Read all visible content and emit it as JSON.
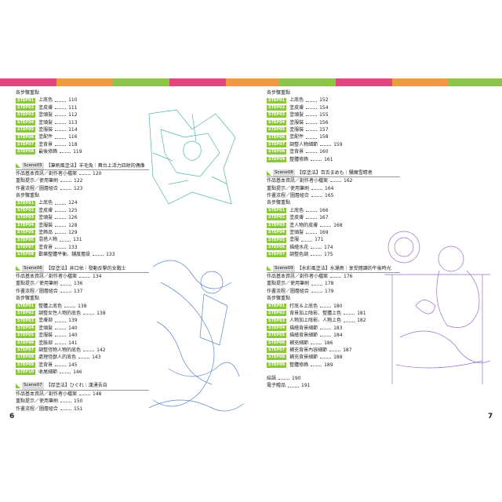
{
  "pages": [
    {
      "number": 6,
      "lines": [
        {
          "text": "各步驟重點"
        },
        {
          "step": "STEP01",
          "text": "上底色",
          "page": 110
        },
        {
          "step": "STEP02",
          "text": "塗皮膚",
          "page": 111
        },
        {
          "step": "STEP03",
          "text": "塗頭髮",
          "page": 112
        },
        {
          "step": "STEP04",
          "text": "塗頭髮",
          "page": 113
        },
        {
          "step": "STEP05",
          "text": "塗服裝",
          "page": 114
        },
        {
          "step": "STEP06",
          "text": "塗配件",
          "page": 116
        },
        {
          "step": "STEP07",
          "text": "塗背景",
          "page": 118
        },
        {
          "step": "STEP08",
          "text": "最後修飾",
          "page": 119
        },
        {
          "scene": "Scene05",
          "text": "【筆刷風塗法】羊毛兔｜舞台上活力四射的偶像"
        },
        {
          "text": "作品基本資訊／創作者小檔案",
          "page": 120
        },
        {
          "text": "重點提示／使用筆刷",
          "page": 122
        },
        {
          "text": "作畫流程／圖層組合",
          "page": 123
        },
        {
          "text": "各步驟重點"
        },
        {
          "step": "STEP01",
          "text": "上底色",
          "page": 124
        },
        {
          "step": "STEP02",
          "text": "塗皮膚",
          "page": 125
        },
        {
          "step": "STEP03",
          "text": "塗頭髮",
          "page": 126
        },
        {
          "step": "STEP04",
          "text": "塗服裝",
          "page": 128
        },
        {
          "step": "STEP05",
          "text": "塗飾品",
          "page": 129
        },
        {
          "step": "STEP06",
          "text": "混搭人物",
          "page": 131
        },
        {
          "step": "STEP07",
          "text": "塗背景",
          "page": 133
        },
        {
          "step": "STEP08",
          "text": "歡樂整體平衡、鋪度層設",
          "page": 133
        },
        {
          "scene": "Scene06",
          "text": "【厚塗法】井口佑｜發動反擊的女戰士"
        },
        {
          "text": "作品基本資訊／創作者小檔案",
          "page": 134
        },
        {
          "text": "重點提示／使用筆刷",
          "page": 136
        },
        {
          "text": "作畫流程／圖層組合",
          "page": 137
        },
        {
          "text": "各步驟重點"
        },
        {
          "step": "STEP01",
          "text": "整體上底色",
          "page": 138
        },
        {
          "step": "STEP02",
          "text": "調整女性人物的底色",
          "page": 138
        },
        {
          "step": "STEP03",
          "text": "塗膚部",
          "page": 139
        },
        {
          "step": "STEP04",
          "text": "塗頭髮",
          "page": 140
        },
        {
          "step": "STEP05",
          "text": "塗服裝",
          "page": 140
        },
        {
          "step": "STEP06",
          "text": "塗臉部",
          "page": 141
        },
        {
          "step": "STEP07",
          "text": "調整怪物人物的底色",
          "page": 142
        },
        {
          "step": "STEP08",
          "text": "處理怪獸人的底色",
          "page": 143
        },
        {
          "step": "STEP09",
          "text": "塗背景",
          "page": 145
        },
        {
          "step": "STEP10",
          "text": "收尾細節",
          "page": 146
        },
        {
          "scene": "Scene07",
          "text": "【厚塗法】ひぐれ｜漢湧吾自"
        },
        {
          "text": "作品基本資訊／創作者小檔案",
          "page": 148
        },
        {
          "text": "重點提示／使用筆刷",
          "page": 150
        },
        {
          "text": "作畫流程／圖層組合",
          "page": 151
        }
      ]
    },
    {
      "number": 7,
      "lines": [
        {
          "text": "各步驟重點"
        },
        {
          "step": "STEP01",
          "text": "上底色",
          "page": 152
        },
        {
          "step": "STEP02",
          "text": "塗皮膚",
          "page": 154
        },
        {
          "step": "STEP03",
          "text": "塗頭髮",
          "page": 155
        },
        {
          "step": "STEP04",
          "text": "塗服裝",
          "page": 156
        },
        {
          "step": "STEP05",
          "text": "塗服裝",
          "page": 157
        },
        {
          "step": "STEP06",
          "text": "塗配件",
          "page": 158
        },
        {
          "step": "STEP07",
          "text": "調整人物細節",
          "page": 159
        },
        {
          "step": "STEP08",
          "text": "塗背景",
          "page": 160
        },
        {
          "step": "STEP09",
          "text": "整體修飾",
          "page": 161
        },
        {
          "scene": "Scene08",
          "text": "【厚塗法】百舌まめも｜騒魔雪精者"
        },
        {
          "text": "作品基本資訊／創作者小檔案",
          "page": 162
        },
        {
          "text": "重點提示／使用筆刷",
          "page": 164
        },
        {
          "text": "作畫流程／圖層組合",
          "page": 165
        },
        {
          "text": "各步驟重點"
        },
        {
          "step": "STEP01",
          "text": "上底色",
          "page": 166
        },
        {
          "step": "STEP02",
          "text": "塗皮膚",
          "page": 167
        },
        {
          "step": "STEP03",
          "text": "塗人物的皮膚",
          "page": 168
        },
        {
          "step": "STEP04",
          "text": "塗頭髮",
          "page": 169
        },
        {
          "step": "STEP05",
          "text": "塗服",
          "page": 171
        },
        {
          "step": "STEP06",
          "text": "描繪水花",
          "page": 174
        },
        {
          "step": "STEP07",
          "text": "調整色調",
          "page": 175
        },
        {
          "scene": "Scene09",
          "text": "【水彩風塗法】水瀬鳥｜享受閱讀的午後時光"
        },
        {
          "text": "作品基本資訊／創作者小檔案",
          "page": 176
        },
        {
          "text": "重點提示／使用筆刷",
          "page": 178
        },
        {
          "text": "作畫流程／圖層組合",
          "page": 179
        },
        {
          "text": "各步驟重點"
        },
        {
          "step": "STEP01",
          "text": "打底＆上底色",
          "page": 180
        },
        {
          "step": "STEP02",
          "text": "背景加上陰影、整體上色",
          "page": 181
        },
        {
          "step": "STEP03",
          "text": "人物加上陰影、人物上色",
          "page": 182
        },
        {
          "step": "STEP04",
          "text": "描繪背景細節",
          "page": 183
        },
        {
          "step": "STEP05",
          "text": "描繪背景細節",
          "page": 184
        },
        {
          "step": "STEP06",
          "text": "補充細節",
          "page": 186
        },
        {
          "step": "STEP07",
          "text": "補充背景內容細節",
          "page": 187
        },
        {
          "step": "STEP08",
          "text": "補充背景細節",
          "page": 188
        },
        {
          "step": "STEP09",
          "text": "整體修飾",
          "page": 189
        },
        {
          "scene": null,
          "text": "結語",
          "page": 190
        },
        {
          "text": "電子贈品",
          "page": 191
        }
      ]
    }
  ]
}
